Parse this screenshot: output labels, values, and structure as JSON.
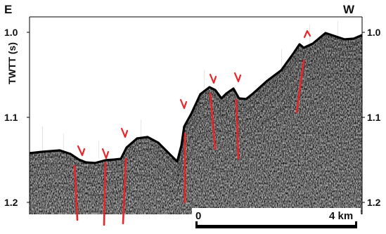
{
  "figure": {
    "direction_left": "E",
    "direction_right": "W",
    "y_axis_label": "TWTT (s)",
    "y_ticks": [
      "1.0",
      "1.1",
      "1.2"
    ],
    "scale_start": "0",
    "scale_end": "4 km",
    "fault_color": "#e8262a",
    "arrow_color": "#e8262a",
    "image_description": "seismic reflection profile with interpreted normal faults"
  }
}
